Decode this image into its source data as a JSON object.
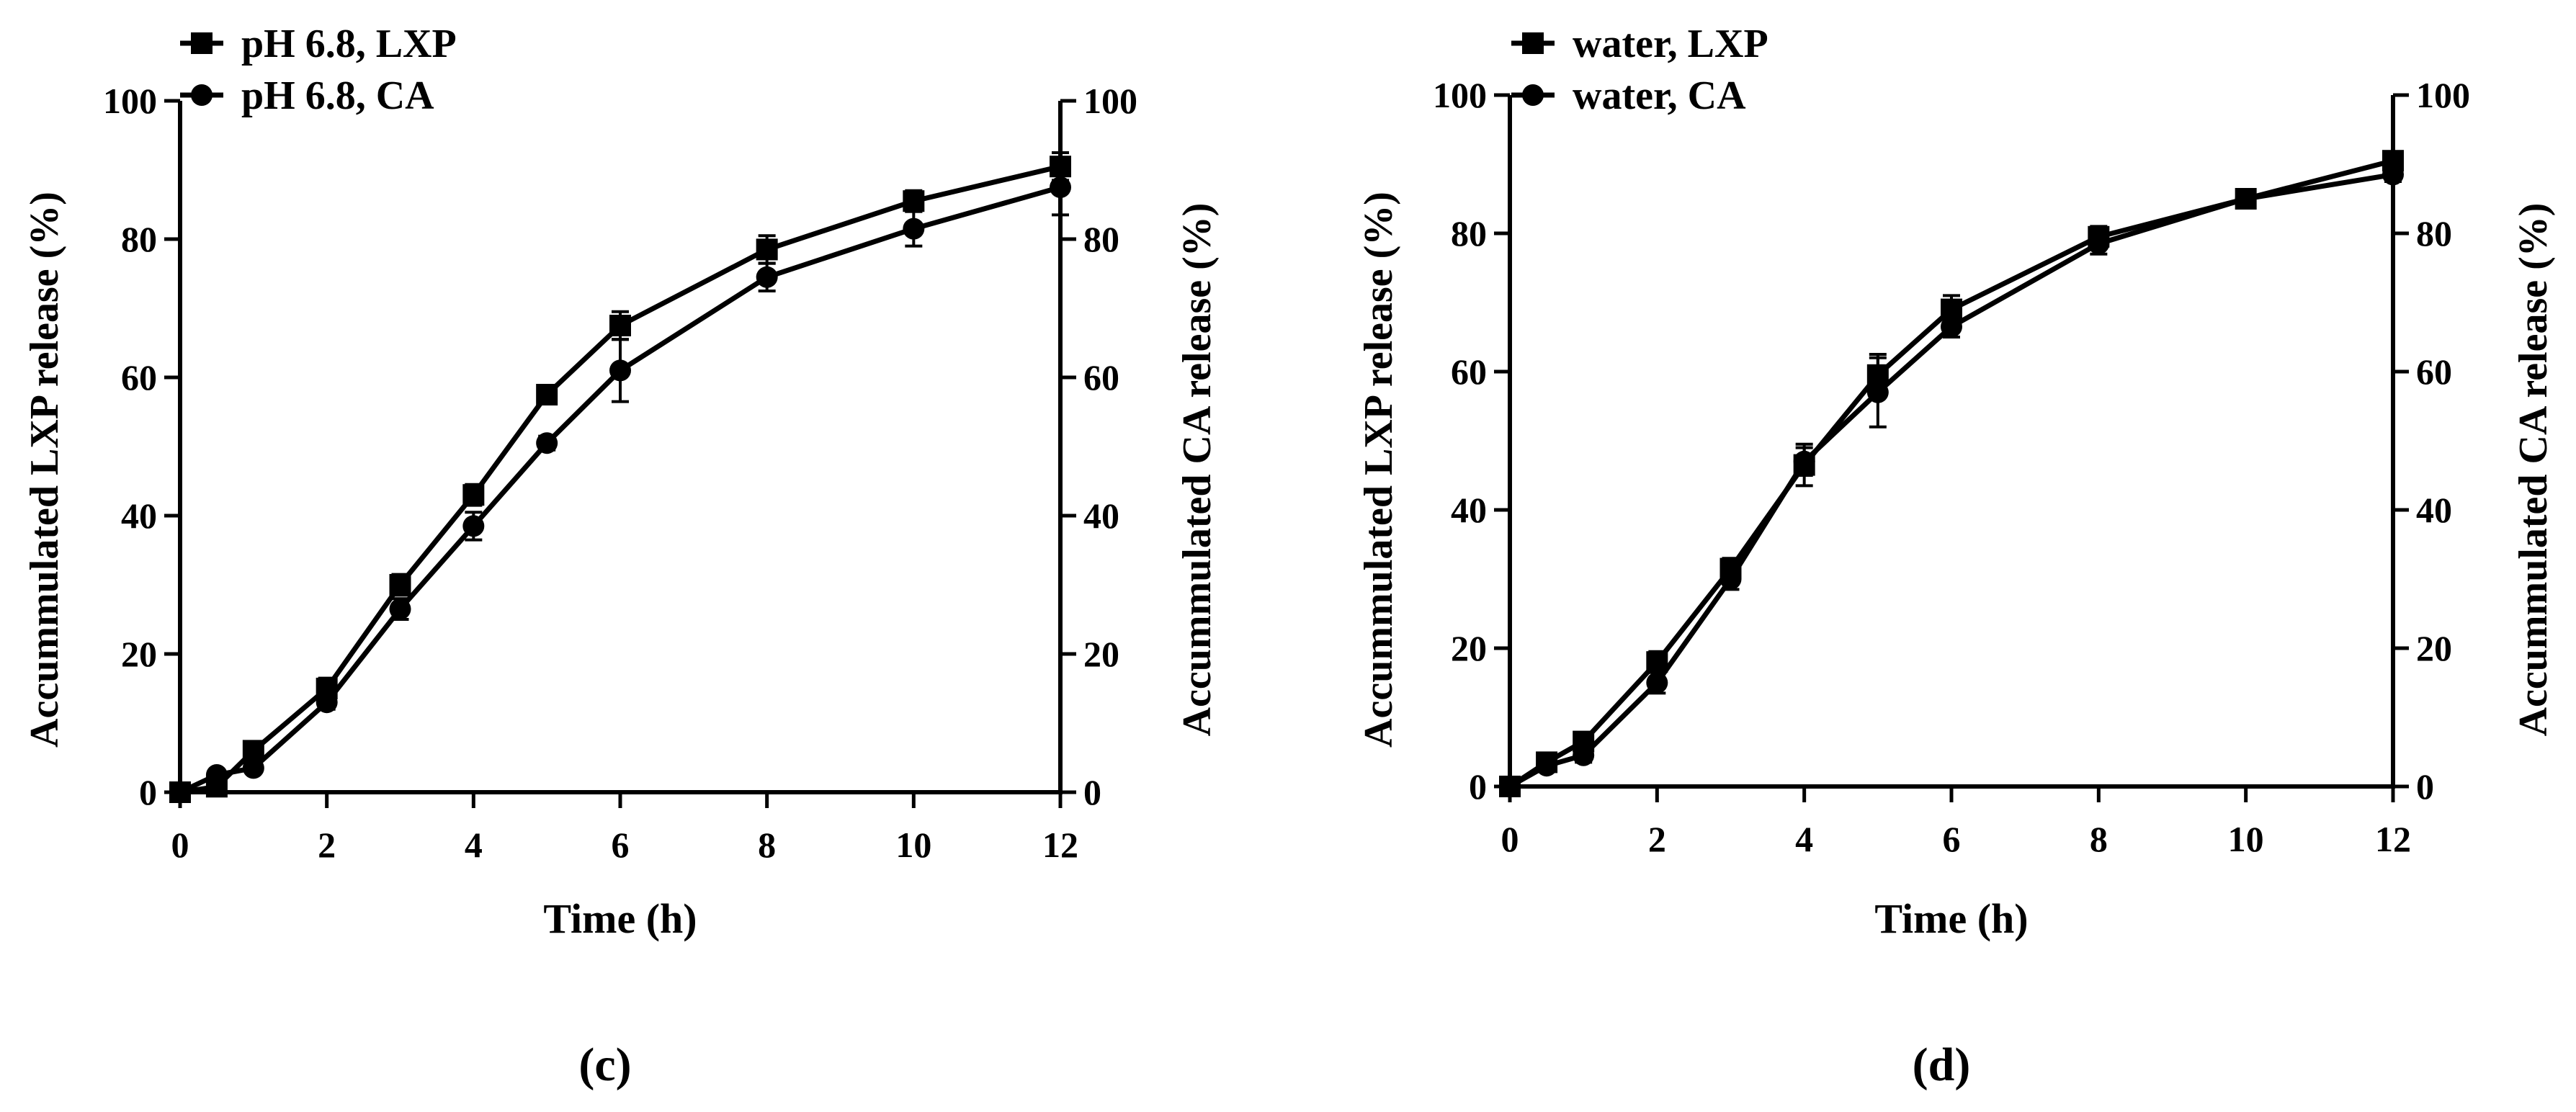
{
  "figure": {
    "colors": {
      "ink": "#000000",
      "background": "#ffffff"
    }
  },
  "chart_data": [
    {
      "panel_label": "(c)",
      "type": "line",
      "xlabel": "Time (h)",
      "ylabel_left": "Accummulated LXP release (%)",
      "ylabel_right": "Accummulated CA release (%)",
      "xlim": [
        0,
        12
      ],
      "ylim": [
        0,
        100
      ],
      "xticks": [
        0,
        2,
        4,
        6,
        8,
        10,
        12
      ],
      "yticks": [
        0,
        20,
        40,
        60,
        80,
        100
      ],
      "x": [
        0,
        0.5,
        1,
        2,
        3,
        4,
        5,
        6,
        8,
        10,
        12
      ],
      "series": [
        {
          "name": "pH 6.8, LXP",
          "marker": "square",
          "axis": "left",
          "values": [
            0,
            0.8,
            6,
            15,
            30,
            43,
            57.5,
            67.5,
            78.5,
            85.5,
            90.5
          ],
          "errors": [
            0,
            0.5,
            1,
            1.5,
            1.5,
            1.5,
            1,
            2,
            2,
            1.5,
            2
          ]
        },
        {
          "name": "pH 6.8, CA",
          "marker": "circle",
          "axis": "right",
          "values": [
            0,
            2.5,
            3.5,
            13,
            26.5,
            38.5,
            50.5,
            61,
            74.5,
            81.5,
            87.5
          ],
          "errors": [
            0,
            0.5,
            0.5,
            1,
            1.5,
            2,
            1,
            4.5,
            2,
            2.5,
            4
          ]
        }
      ],
      "legend": "top-left"
    },
    {
      "panel_label": "(d)",
      "type": "line",
      "xlabel": "Time (h)",
      "ylabel_left": "Accummulated LXP release (%)",
      "ylabel_right": "Accummulated CA release (%)",
      "xlim": [
        0,
        12
      ],
      "ylim": [
        0,
        100
      ],
      "xticks": [
        0,
        2,
        4,
        6,
        8,
        10,
        12
      ],
      "yticks": [
        0,
        20,
        40,
        60,
        80,
        100
      ],
      "x": [
        0,
        0.5,
        1,
        2,
        3,
        4,
        5,
        6,
        8,
        10,
        12
      ],
      "series": [
        {
          "name": "water, LXP",
          "marker": "square",
          "axis": "left",
          "values": [
            0,
            3.5,
            6.5,
            18,
            31.5,
            46.5,
            59.5,
            69,
            79.5,
            85,
            90.5
          ],
          "errors": [
            0,
            0.8,
            1,
            1.5,
            1.5,
            3,
            3,
            2,
            1.5,
            1,
            1
          ]
        },
        {
          "name": "water, CA",
          "marker": "circle",
          "axis": "right",
          "values": [
            0,
            3,
            4.5,
            15,
            30,
            47,
            57,
            66.5,
            78.5,
            85,
            88.5
          ],
          "errors": [
            0,
            0.5,
            1,
            1.5,
            1.5,
            2,
            5,
            1.5,
            1.5,
            1,
            1
          ]
        }
      ],
      "legend": "top-left"
    }
  ]
}
